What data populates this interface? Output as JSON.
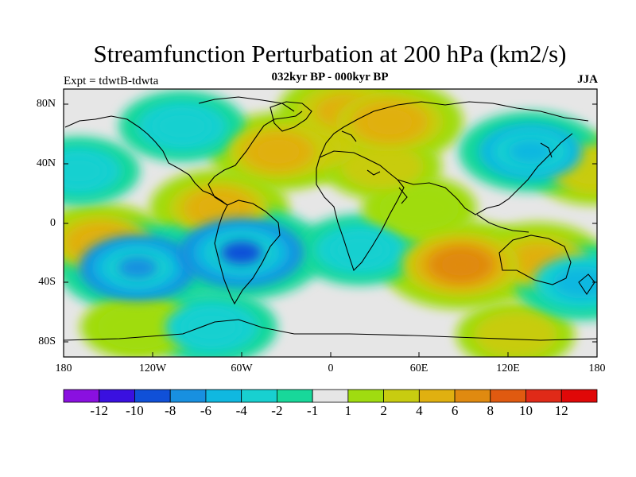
{
  "title": "Streamfunction Perturbation at 200 hPa (km2/s)",
  "subtitle": "032kyr BP - 000kyr BP",
  "expt": "Expt = tdwtB-tdwta",
  "season": "JJA",
  "lat_labels": [
    "80N",
    "40N",
    "0",
    "40S",
    "80S"
  ],
  "lon_labels": [
    "180",
    "120W",
    "60W",
    "0",
    "60E",
    "120E",
    "180"
  ],
  "colorbar": {
    "labels": [
      "-12",
      "-10",
      "-8",
      "-6",
      "-4",
      "-2",
      "-1",
      "1",
      "2",
      "4",
      "6",
      "8",
      "10",
      "12"
    ],
    "colors": [
      "#8a10e0",
      "#3a10e0",
      "#1050d8",
      "#1890e0",
      "#10b8e0",
      "#18d0d0",
      "#18d89a",
      "#e6e6e6",
      "#a0dc10",
      "#c8cc10",
      "#e0b010",
      "#e08a10",
      "#e05a10",
      "#e02a18",
      "#e00808"
    ]
  },
  "chart_data": {
    "type": "heatmap",
    "variable": "Streamfunction Perturbation at 200 hPa",
    "units": "km2/s",
    "lon_range": [
      -180,
      180
    ],
    "lat_range": [
      -90,
      90
    ],
    "levels": [
      -12,
      -10,
      -8,
      -6,
      -4,
      -2,
      -1,
      1,
      2,
      4,
      6,
      8,
      10,
      12
    ],
    "features": [
      {
        "lon": -10,
        "lat": 52,
        "value": 2.5
      },
      {
        "lon": -35,
        "lat": 48,
        "value": 4.5
      },
      {
        "lon": 40,
        "lat": 68,
        "value": 5.5
      },
      {
        "lon": 10,
        "lat": 75,
        "value": 4
      },
      {
        "lon": -75,
        "lat": 10,
        "value": 4.5
      },
      {
        "lon": -155,
        "lat": -13,
        "value": 4.5
      },
      {
        "lon": 88,
        "lat": -28,
        "value": 7
      },
      {
        "lon": 140,
        "lat": -25,
        "value": 4
      },
      {
        "lon": 35,
        "lat": 38,
        "value": 2
      },
      {
        "lon": 178,
        "lat": 36,
        "value": 3
      },
      {
        "lon": 125,
        "lat": -75,
        "value": 2
      },
      {
        "lon": -130,
        "lat": -30,
        "value": -7
      },
      {
        "lon": -60,
        "lat": -20,
        "value": -8
      },
      {
        "lon": -100,
        "lat": 65,
        "value": -3
      },
      {
        "lon": -170,
        "lat": 35,
        "value": -2.5
      },
      {
        "lon": 135,
        "lat": 48,
        "value": -5
      },
      {
        "lon": 20,
        "lat": -18,
        "value": -3
      },
      {
        "lon": 170,
        "lat": -40,
        "value": -4
      },
      {
        "lon": -80,
        "lat": -70,
        "value": -3.5
      },
      {
        "lon": 60,
        "lat": 10,
        "value": 1.5
      },
      {
        "lon": -130,
        "lat": -70,
        "value": 1.5
      }
    ]
  }
}
